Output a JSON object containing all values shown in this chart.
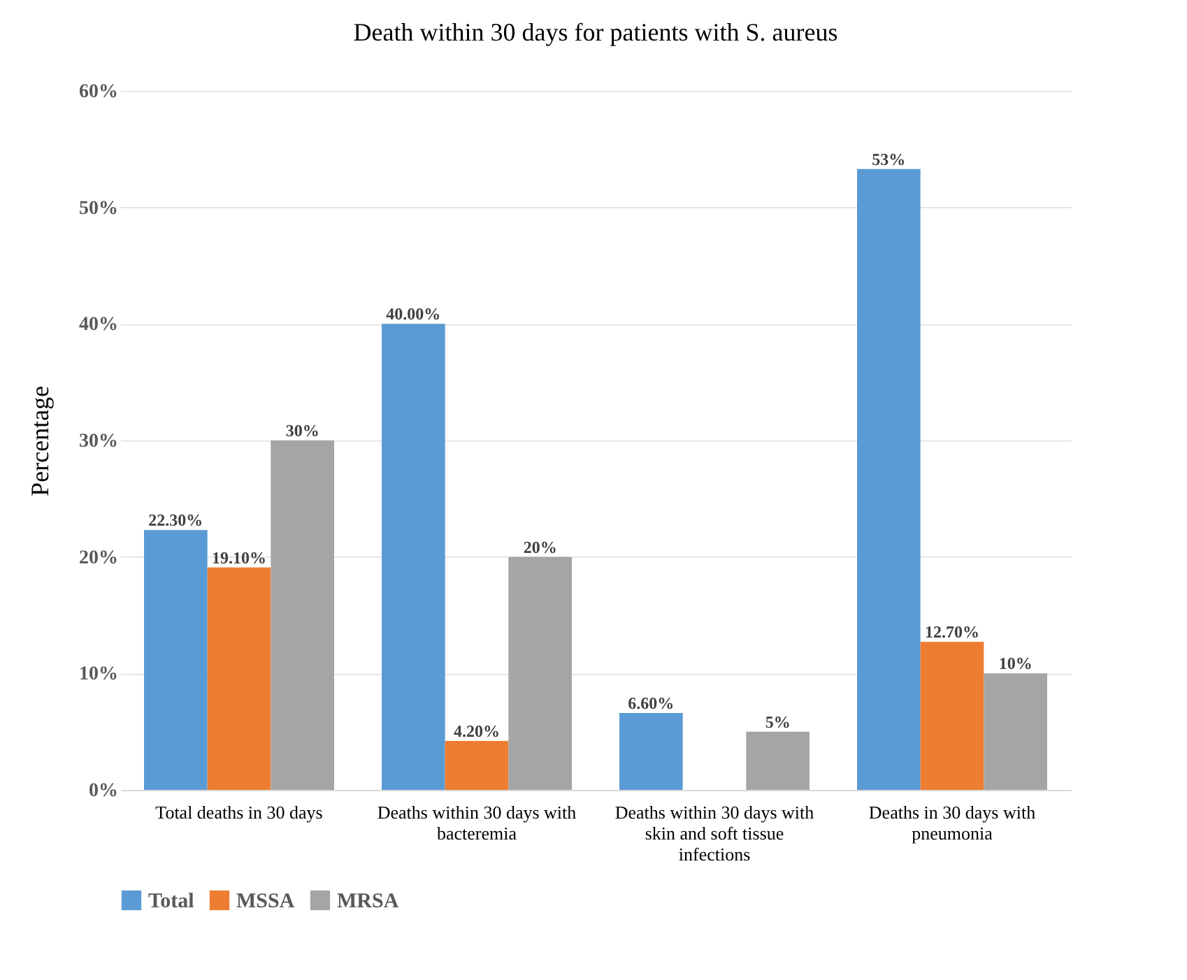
{
  "chart_data": {
    "type": "bar",
    "title": "Death within 30 days for patients with S. aureus",
    "ylabel": "Percentage",
    "categories": [
      "Total deaths in 30 days",
      "Deaths within 30 days with bacteremia",
      "Deaths within 30 days with skin and soft tissue infections",
      "Deaths in 30 days with pneumonia"
    ],
    "series": [
      {
        "name": "Total",
        "color": "#5b9bd5",
        "values": [
          22.3,
          40,
          6.6,
          53.3
        ],
        "value_labels": [
          "22.30%",
          "40.00%",
          "6.60%",
          "53%"
        ]
      },
      {
        "name": "MSSA",
        "color": "#ed7d31",
        "values": [
          19.1,
          4.2,
          null,
          12.7
        ],
        "value_labels": [
          "19.10%",
          "4.20%",
          null,
          "12.70%"
        ]
      },
      {
        "name": "MRSA",
        "color": "#a5a5a5",
        "values": [
          30,
          20,
          5,
          10
        ],
        "value_labels": [
          "30%",
          "20%",
          "5%",
          "10%"
        ]
      }
    ],
    "ylim": [
      0,
      60
    ],
    "yticks": [
      {
        "value": 0,
        "label": "0%"
      },
      {
        "value": 10,
        "label": "10%"
      },
      {
        "value": 20,
        "label": "20%"
      },
      {
        "value": 30,
        "label": "30%"
      },
      {
        "value": 40,
        "label": "40%"
      },
      {
        "value": 50,
        "label": "50%"
      },
      {
        "value": 60,
        "label": "60%"
      }
    ],
    "grid": "y",
    "legend": "bottom"
  }
}
